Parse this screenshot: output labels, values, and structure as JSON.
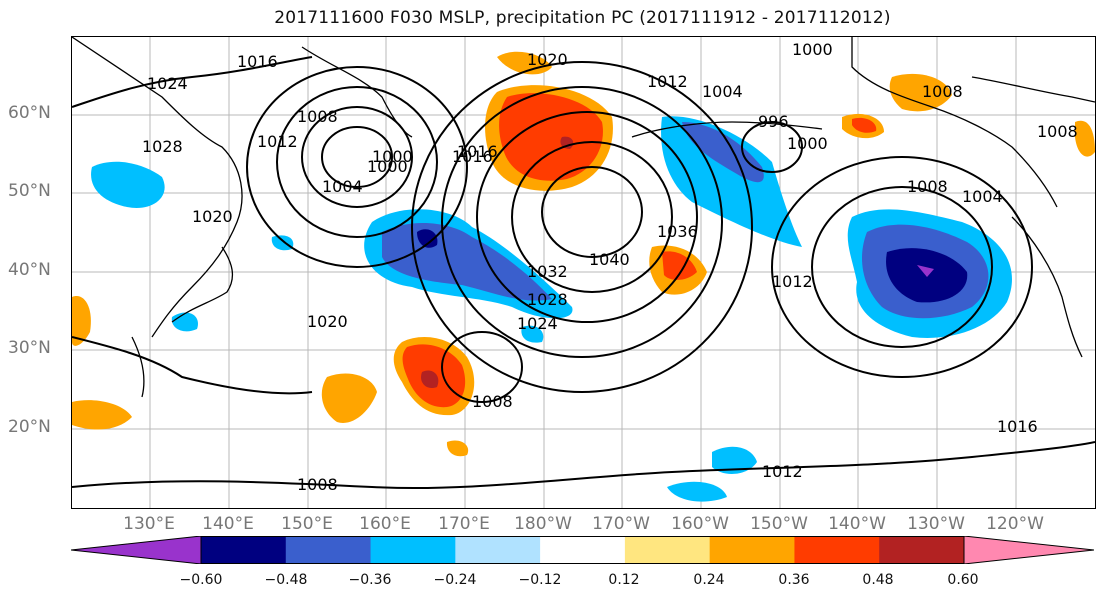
{
  "title": "2017111600 F030 MSLP, precipitation PC (2017111912 - 2017112012)",
  "lat_labels": [
    "60°N",
    "50°N",
    "40°N",
    "30°N",
    "20°N"
  ],
  "lon_labels": [
    "130°E",
    "140°E",
    "150°E",
    "160°E",
    "170°E",
    "180°W",
    "170°W",
    "160°W",
    "150°W",
    "140°W",
    "130°W",
    "120°W"
  ],
  "isobar_labels": [
    "1024",
    "1016",
    "1028",
    "1012",
    "1020",
    "1008",
    "1000",
    "1004",
    "1000",
    "1016",
    "1020",
    "1020",
    "1040",
    "1036",
    "1032",
    "1028",
    "1024",
    "1016",
    "1012",
    "1008",
    "1008",
    "1012",
    "1004",
    "1000",
    "996",
    "1000",
    "1008",
    "1004",
    "1016",
    "1012",
    "1008",
    "1008"
  ],
  "colorbar": {
    "ticks": [
      "−0.60",
      "−0.48",
      "−0.36",
      "−0.24",
      "−0.12",
      "0.12",
      "0.24",
      "0.36",
      "0.48",
      "0.60"
    ],
    "colors": [
      "#9933cc",
      "#000080",
      "#3a5fcd",
      "#00bfff",
      "#b0e2ff",
      "#ffffff",
      "#ffe680",
      "#ffa500",
      "#ff3c00",
      "#b22222",
      "#ff88b0"
    ]
  }
}
